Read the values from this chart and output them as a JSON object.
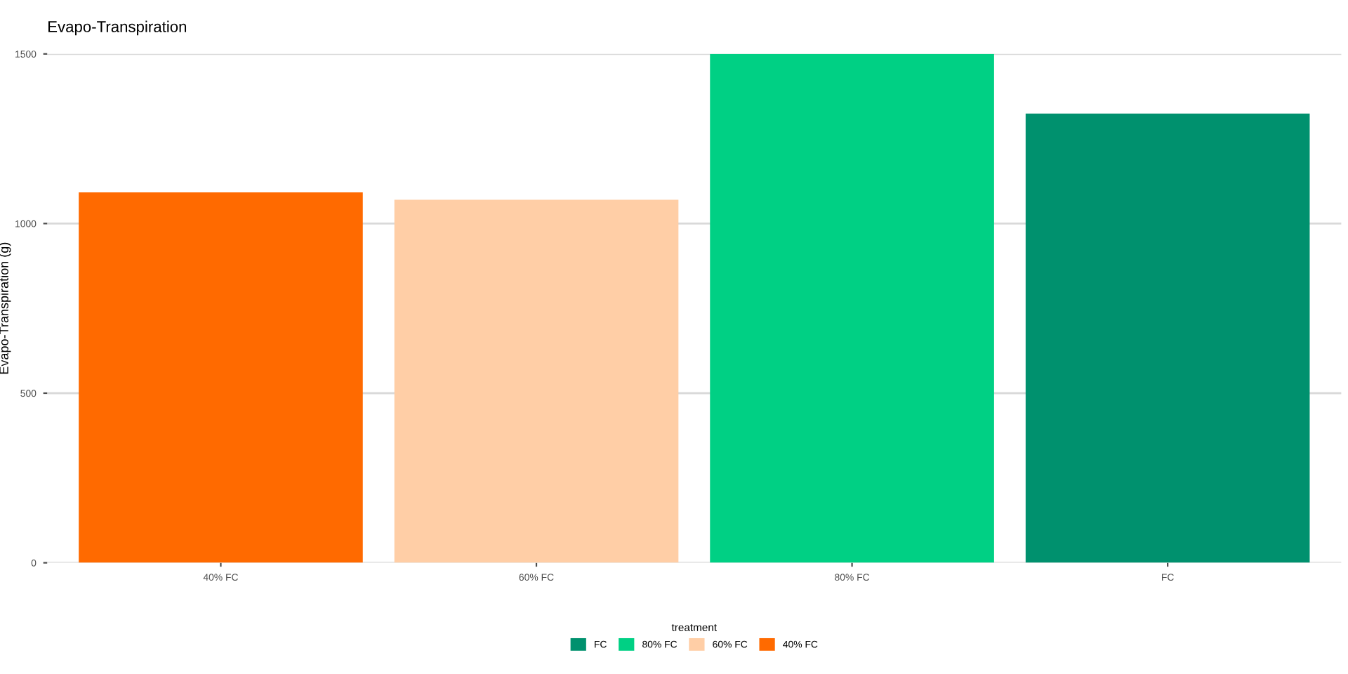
{
  "chart_data": {
    "type": "bar",
    "title": "Evapo-Transpiration",
    "ylabel": "Evapo-Transpiration (g)",
    "legend_title": "treatment",
    "categories": [
      "40% FC",
      "60% FC",
      "80% FC",
      "FC"
    ],
    "series": [
      {
        "name": "FC",
        "color": "#00916e",
        "values": [
          null,
          null,
          null,
          1324
        ]
      },
      {
        "name": "80% FC",
        "color": "#00d084",
        "values": [
          null,
          null,
          1500,
          null
        ]
      },
      {
        "name": "60% FC",
        "color": "#ffcea6",
        "values": [
          null,
          1070,
          null,
          null
        ]
      },
      {
        "name": "40% FC",
        "color": "#ff6a00",
        "values": [
          1092,
          null,
          null,
          null
        ]
      }
    ],
    "ylim": [
      0,
      1500
    ],
    "yticks": [
      0,
      500,
      1000,
      1500
    ],
    "grid": "y",
    "legend": "bottom"
  }
}
